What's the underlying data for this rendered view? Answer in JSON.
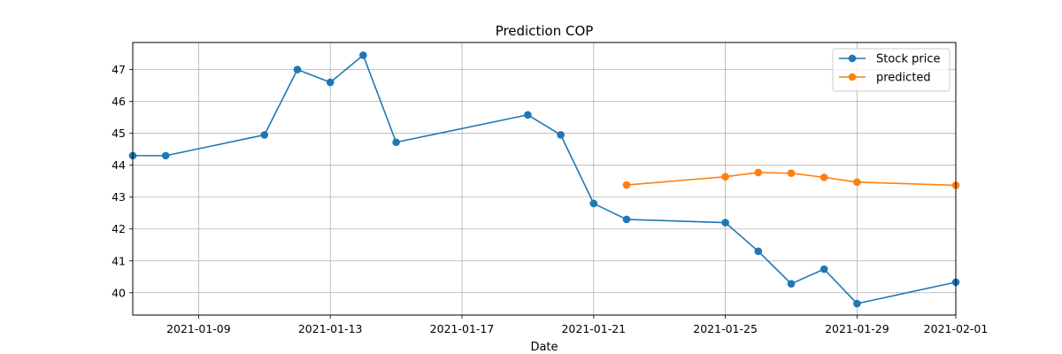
{
  "chart_data": {
    "type": "line",
    "title": "Prediction COP",
    "xlabel": "Date",
    "ylabel": "",
    "xlim": [
      "2021-01-07",
      "2021-02-01"
    ],
    "ylim": [
      39.3,
      47.85
    ],
    "xticks": [
      "2021-01-09",
      "2021-01-13",
      "2021-01-17",
      "2021-01-21",
      "2021-01-25",
      "2021-01-29",
      "2021-02-01"
    ],
    "yticks": [
      40,
      41,
      42,
      43,
      44,
      45,
      46,
      47
    ],
    "grid": true,
    "legend_position": "top-right",
    "series": [
      {
        "name": "Stock price",
        "color": "#1f77b4",
        "points": [
          {
            "x": "2021-01-07",
            "y": 44.3
          },
          {
            "x": "2021-01-08",
            "y": 44.3
          },
          {
            "x": "2021-01-11",
            "y": 44.95
          },
          {
            "x": "2021-01-12",
            "y": 47.0
          },
          {
            "x": "2021-01-13",
            "y": 46.6
          },
          {
            "x": "2021-01-14",
            "y": 47.45
          },
          {
            "x": "2021-01-15",
            "y": 44.72
          },
          {
            "x": "2021-01-19",
            "y": 45.58
          },
          {
            "x": "2021-01-20",
            "y": 44.95
          },
          {
            "x": "2021-01-21",
            "y": 42.8
          },
          {
            "x": "2021-01-22",
            "y": 42.3
          },
          {
            "x": "2021-01-25",
            "y": 42.2
          },
          {
            "x": "2021-01-26",
            "y": 41.3
          },
          {
            "x": "2021-01-27",
            "y": 40.28
          },
          {
            "x": "2021-01-28",
            "y": 40.74
          },
          {
            "x": "2021-01-29",
            "y": 39.66
          },
          {
            "x": "2021-02-01",
            "y": 40.33
          }
        ]
      },
      {
        "name": "predicted",
        "color": "#ff7f0e",
        "points": [
          {
            "x": "2021-01-22",
            "y": 43.38
          },
          {
            "x": "2021-01-25",
            "y": 43.64
          },
          {
            "x": "2021-01-26",
            "y": 43.77
          },
          {
            "x": "2021-01-27",
            "y": 43.75
          },
          {
            "x": "2021-01-28",
            "y": 43.62
          },
          {
            "x": "2021-01-29",
            "y": 43.47
          },
          {
            "x": "2021-02-01",
            "y": 43.37
          }
        ]
      }
    ]
  }
}
